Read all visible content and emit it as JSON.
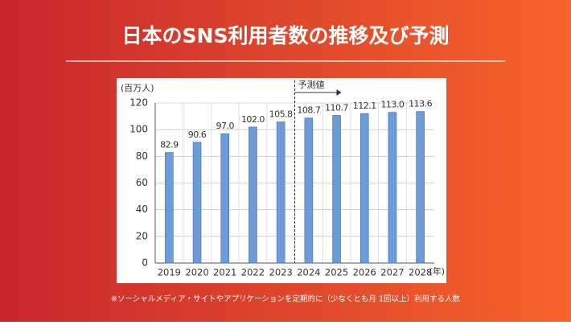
{
  "header": {
    "title": "日本のSNS利用者数の推移及び予測"
  },
  "footnote": "※ソーシャルメディア・サイトやアプリケーションを定期的に（少なくとも月 1回以上）利用する人数",
  "chart_data": {
    "type": "bar",
    "y_label": "(百万人)",
    "x_label": "(年)",
    "annotation": "予測値",
    "categories": [
      "2019",
      "2020",
      "2021",
      "2022",
      "2023",
      "2024",
      "2025",
      "2026",
      "2027",
      "2028"
    ],
    "values": [
      82.9,
      90.6,
      97.0,
      102.0,
      105.8,
      108.7,
      110.7,
      112.1,
      113.0,
      113.6
    ],
    "value_labels": [
      "82.9",
      "90.6",
      "97.0",
      "102.0",
      "105.8",
      "108.7",
      "110.7",
      "112.1",
      "113.0",
      "113.6"
    ],
    "color": "#6d9bd8",
    "ylim": [
      0,
      120
    ],
    "yticks": [
      0,
      20,
      40,
      60,
      80,
      100,
      120
    ],
    "grid": true
  }
}
